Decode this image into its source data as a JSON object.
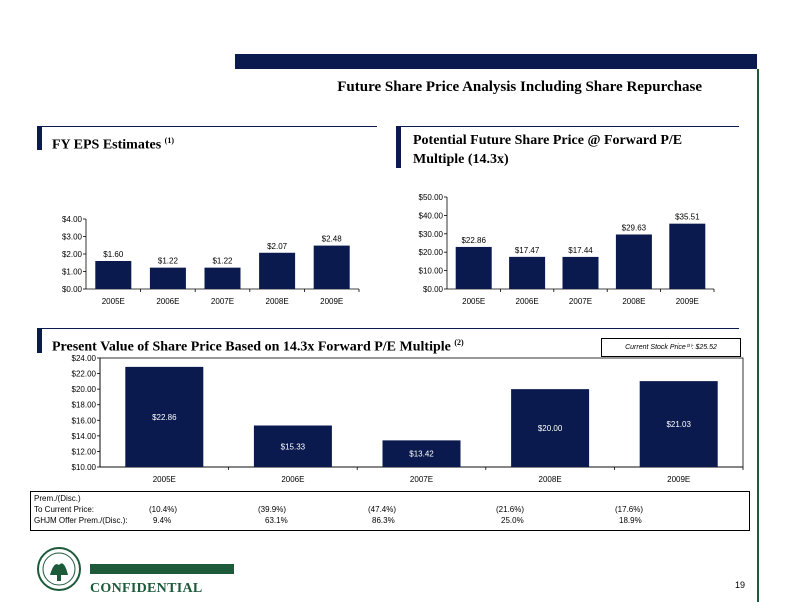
{
  "title": "Future Share Price Analysis Including Share Repurchase",
  "sections": {
    "eps": {
      "title": "FY EPS Estimates",
      "note": "(1)"
    },
    "future": {
      "title_line1": "Potential Future Share Price @ Forward P/E",
      "title_line2": "Multiple (14.3x)"
    },
    "pv": {
      "title": "Present Value of Share Price Based on 14.3x Forward P/E Multiple",
      "note": "(2)"
    }
  },
  "current_stock_price": "Current Stock Price⁽³⁾: $25.52",
  "chart_data": [
    {
      "type": "bar",
      "categories": [
        "2005E",
        "2006E",
        "2007E",
        "2008E",
        "2009E"
      ],
      "values": [
        1.6,
        1.22,
        1.22,
        2.07,
        2.48
      ],
      "value_labels": [
        "$1.60",
        "$1.22",
        "$1.22",
        "$2.07",
        "$2.48"
      ],
      "title": "FY EPS Estimates",
      "ylim": [
        0,
        4
      ],
      "yticks": [
        "$0.00",
        "$1.00",
        "$2.00",
        "$3.00",
        "$4.00"
      ],
      "bar_color": "#0a1a4f"
    },
    {
      "type": "bar",
      "categories": [
        "2005E",
        "2006E",
        "2007E",
        "2008E",
        "2009E"
      ],
      "values": [
        22.86,
        17.47,
        17.44,
        29.63,
        35.51
      ],
      "value_labels": [
        "$22.86",
        "$17.47",
        "$17.44",
        "$29.63",
        "$35.51"
      ],
      "title": "Potential Future Share Price @ Forward P/E Multiple (14.3x)",
      "ylim": [
        0,
        50
      ],
      "yticks": [
        "$0.00",
        "$10.00",
        "$20.00",
        "$30.00",
        "$40.00",
        "$50.00"
      ],
      "bar_color": "#0a1a4f"
    },
    {
      "type": "bar",
      "categories": [
        "2005E",
        "2006E",
        "2007E",
        "2008E",
        "2009E"
      ],
      "values": [
        22.86,
        15.33,
        13.42,
        20.0,
        21.03
      ],
      "value_labels": [
        "$22.86",
        "$15.33",
        "$13.42",
        "$20.00",
        "$21.03"
      ],
      "title": "Present Value of Share Price Based on 14.3x Forward P/E Multiple",
      "ylim": [
        10,
        24
      ],
      "yticks": [
        "$10.00",
        "$12.00",
        "$14.00",
        "$16.00",
        "$18.00",
        "$20.00",
        "$22.00",
        "$24.00"
      ],
      "bar_color": "#0a1a4f"
    }
  ],
  "premium_table": {
    "header": "Prem./(Disc.)",
    "rows": [
      {
        "label": "To Current Price:",
        "values": [
          "(10.4%)",
          "(39.9%)",
          "(47.4%)",
          "(21.6%)",
          "(17.6%)"
        ]
      },
      {
        "label": "GHJM Offer Prem./(Disc.):",
        "values": [
          "9.4%",
          "63.1%",
          "86.3%",
          "25.0%",
          "18.9%"
        ]
      }
    ]
  },
  "footer": {
    "confidential": "CONFIDENTIAL",
    "page_number": "19"
  }
}
